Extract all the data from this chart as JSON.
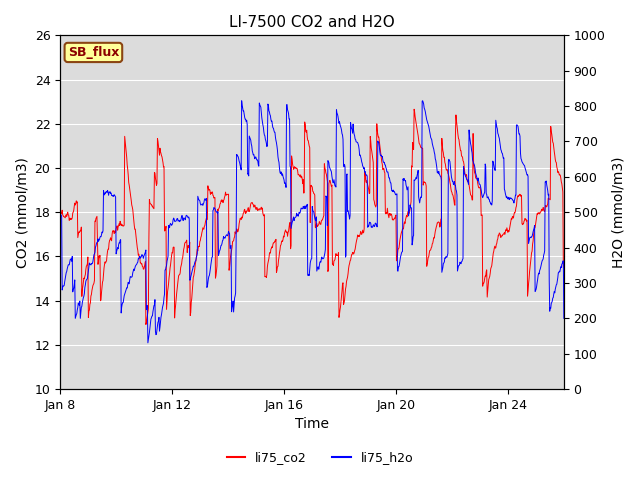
{
  "title": "LI-7500 CO2 and H2O",
  "xlabel": "Time",
  "ylabel_left": "CO2 (mmol/m3)",
  "ylabel_right": "H2O (mmol/m3)",
  "ylim_left": [
    10,
    26
  ],
  "ylim_right": [
    0,
    1000
  ],
  "yticks_left": [
    10,
    12,
    14,
    16,
    18,
    20,
    22,
    24,
    26
  ],
  "yticks_right": [
    0,
    100,
    200,
    300,
    400,
    500,
    600,
    700,
    800,
    900,
    1000
  ],
  "xtick_labels": [
    "Jan 8",
    "Jan 12",
    "Jan 16",
    "Jan 20",
    "Jan 24"
  ],
  "xtick_positions": [
    0,
    4,
    8,
    12,
    16
  ],
  "xlim": [
    0,
    18
  ],
  "legend_labels": [
    "li75_co2",
    "li75_h2o"
  ],
  "line_colors": [
    "red",
    "blue"
  ],
  "line_width": 0.7,
  "plot_bg_color": "#dcdcdc",
  "fig_bg_color": "#ffffff",
  "grid_color": "#ffffff",
  "annotation_text": "SB_flux",
  "annotation_color": "#8b0000",
  "annotation_bg": "#ffff99",
  "annotation_border": "#8b4513",
  "title_fontsize": 11,
  "axis_fontsize": 10,
  "tick_fontsize": 9,
  "legend_fontsize": 9
}
